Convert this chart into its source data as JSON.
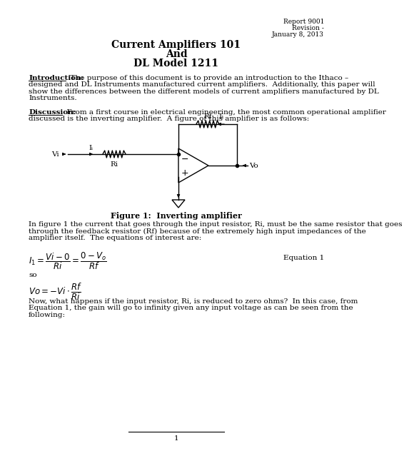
{
  "header_right": [
    "Report 9001",
    "Revision -",
    "January 8, 2013"
  ],
  "title_lines": [
    "Current Amplifiers 101",
    "And",
    "DL Model 1211"
  ],
  "intro_label": "Introduction:",
  "intro_text_first": "  The purpose of this document is to provide an introduction to the Ithaco –",
  "intro_text_rest": [
    "designed and DL Instruments manufactured current amplifiers.  Additionally, this paper will",
    "show the differences between the different models of current amplifiers manufactured by DL",
    "Instruments."
  ],
  "disc_label": "Discussion:",
  "disc_text_first": "  From a first course in electrical engineering, the most common operational amplifier",
  "disc_text_rest": [
    "discussed is the inverting amplifier.  A figure of this amplifier is as follows:"
  ],
  "fig_caption": "Figure 1:  Inverting amplifier",
  "body_lines": [
    "In figure 1 the current that goes through the input resistor, Ri, must be the same resistor that goes",
    "through the feedback resistor (Rf) because of the extremely high input impedances of the",
    "amplifier itself.  The equations of interest are:"
  ],
  "eq_label": "Equation 1",
  "so_text": "so",
  "footer_text": "1",
  "next_lines": [
    "Now, what happens if the input resistor, Ri, is reduced to zero ohms?  In this case, from",
    "Equation 1, the gain will go to infinity given any input voltage as can be seen from the",
    "following:"
  ],
  "bg_color": "#ffffff",
  "text_color": "#000000",
  "font_size_body": 7.5,
  "font_size_title": 10,
  "font_size_header": 6.5
}
